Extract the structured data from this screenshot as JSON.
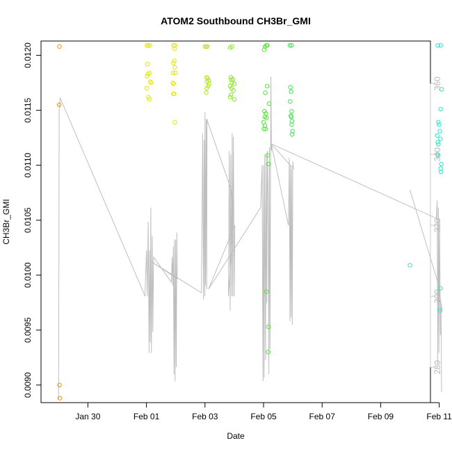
{
  "chart_data": {
    "type": "scatter",
    "title": "ATOM2 Southbound CH3Br_GMI",
    "xlabel": "Date",
    "ylabel": "CH3Br_GMI",
    "x_units": "days since Jan 30 00:00",
    "xlim": [
      -1.6,
      11.7
    ],
    "ylim": [
      0.00884,
      0.01213
    ],
    "y2lim": [
      270,
      372
    ],
    "x_ticks": [
      {
        "value": 0,
        "label": "Jan 30"
      },
      {
        "value": 2,
        "label": "Feb 01"
      },
      {
        "value": 4,
        "label": "Feb 03"
      },
      {
        "value": 6,
        "label": "Feb 05"
      },
      {
        "value": 8,
        "label": "Feb 07"
      },
      {
        "value": 10,
        "label": "Feb 09"
      },
      {
        "value": 12,
        "label": "Feb 11"
      }
    ],
    "y_ticks": [
      {
        "value": 0.009,
        "label": "0.0090"
      },
      {
        "value": 0.0095,
        "label": "0.0095"
      },
      {
        "value": 0.01,
        "label": "0.0100"
      },
      {
        "value": 0.0105,
        "label": "0.0105"
      },
      {
        "value": 0.011,
        "label": "0.0110"
      },
      {
        "value": 0.0115,
        "label": "0.0115"
      },
      {
        "value": 0.012,
        "label": "0.0120"
      }
    ],
    "y2_ticks": [
      {
        "value": 280,
        "label": "280"
      },
      {
        "value": 300,
        "label": "300"
      },
      {
        "value": 320,
        "label": "320"
      },
      {
        "value": 340,
        "label": "340"
      },
      {
        "value": 360,
        "label": "360"
      }
    ],
    "points": [
      {
        "x": -0.97,
        "y": 0.01208,
        "color": "#ff8c00"
      },
      {
        "x": -0.98,
        "y": 0.01155,
        "color": "#ff8c00"
      },
      {
        "x": -0.97,
        "y": 0.009,
        "color": "#ff8c00"
      },
      {
        "x": -0.96,
        "y": 0.00888,
        "color": "#ff8c00"
      },
      {
        "x": 2.02,
        "y": 0.01209,
        "color": "#e6e600"
      },
      {
        "x": 2.06,
        "y": 0.01209,
        "color": "#e6e600"
      },
      {
        "x": 2.12,
        "y": 0.01209,
        "color": "#e6e600"
      },
      {
        "x": 2.03,
        "y": 0.01192,
        "color": "#e6e600"
      },
      {
        "x": 2.05,
        "y": 0.01183,
        "color": "#e6e600"
      },
      {
        "x": 2.11,
        "y": 0.01184,
        "color": "#e6e600"
      },
      {
        "x": 2.02,
        "y": 0.01181,
        "color": "#e6e600"
      },
      {
        "x": 2.13,
        "y": 0.01176,
        "color": "#e6e600"
      },
      {
        "x": 2.16,
        "y": 0.01175,
        "color": "#e6e600"
      },
      {
        "x": 2.01,
        "y": 0.0117,
        "color": "#e6e600"
      },
      {
        "x": 2.07,
        "y": 0.01162,
        "color": "#e6e600"
      },
      {
        "x": 2.1,
        "y": 0.0116,
        "color": "#e6e600"
      },
      {
        "x": 2.93,
        "y": 0.01209,
        "color": "#e6e600"
      },
      {
        "x": 2.98,
        "y": 0.01209,
        "color": "#e6e600"
      },
      {
        "x": 2.96,
        "y": 0.01206,
        "color": "#e6e600"
      },
      {
        "x": 2.92,
        "y": 0.01193,
        "color": "#e6e600"
      },
      {
        "x": 2.95,
        "y": 0.01195,
        "color": "#e6e600"
      },
      {
        "x": 2.97,
        "y": 0.01189,
        "color": "#e6e600"
      },
      {
        "x": 2.91,
        "y": 0.01184,
        "color": "#e6e600"
      },
      {
        "x": 2.99,
        "y": 0.01184,
        "color": "#e6e600"
      },
      {
        "x": 2.9,
        "y": 0.01175,
        "color": "#e6e600"
      },
      {
        "x": 2.93,
        "y": 0.01174,
        "color": "#e6e600"
      },
      {
        "x": 2.92,
        "y": 0.01165,
        "color": "#e6e600"
      },
      {
        "x": 2.95,
        "y": 0.01165,
        "color": "#e6e600"
      },
      {
        "x": 2.97,
        "y": 0.01139,
        "color": "#e6e600"
      },
      {
        "x": 4.0,
        "y": 0.01208,
        "color": "#b4e61e"
      },
      {
        "x": 4.04,
        "y": 0.01208,
        "color": "#b4e61e"
      },
      {
        "x": 4.08,
        "y": 0.01208,
        "color": "#b4e61e"
      },
      {
        "x": 4.05,
        "y": 0.0118,
        "color": "#b4e61e"
      },
      {
        "x": 4.09,
        "y": 0.01179,
        "color": "#b4e61e"
      },
      {
        "x": 4.13,
        "y": 0.01177,
        "color": "#b4e61e"
      },
      {
        "x": 4.07,
        "y": 0.01176,
        "color": "#b4e61e"
      },
      {
        "x": 4.14,
        "y": 0.01174,
        "color": "#b4e61e"
      },
      {
        "x": 4.11,
        "y": 0.01172,
        "color": "#b4e61e"
      },
      {
        "x": 4.06,
        "y": 0.0117,
        "color": "#b4e61e"
      },
      {
        "x": 4.04,
        "y": 0.01166,
        "color": "#b4e61e"
      },
      {
        "x": 4.86,
        "y": 0.01207,
        "color": "#8ce628"
      },
      {
        "x": 4.92,
        "y": 0.01208,
        "color": "#8ce628"
      },
      {
        "x": 4.88,
        "y": 0.0118,
        "color": "#8ce628"
      },
      {
        "x": 4.9,
        "y": 0.01178,
        "color": "#8ce628"
      },
      {
        "x": 4.96,
        "y": 0.01178,
        "color": "#8ce628"
      },
      {
        "x": 4.92,
        "y": 0.01175,
        "color": "#8ce628"
      },
      {
        "x": 5.0,
        "y": 0.01174,
        "color": "#8ce628"
      },
      {
        "x": 4.86,
        "y": 0.01172,
        "color": "#8ce628"
      },
      {
        "x": 4.91,
        "y": 0.0117,
        "color": "#8ce628"
      },
      {
        "x": 4.97,
        "y": 0.01168,
        "color": "#8ce628"
      },
      {
        "x": 4.89,
        "y": 0.01164,
        "color": "#8ce628"
      },
      {
        "x": 4.86,
        "y": 0.01162,
        "color": "#8ce628"
      },
      {
        "x": 5.0,
        "y": 0.0116,
        "color": "#8ce628"
      },
      {
        "x": 6.02,
        "y": 0.01205,
        "color": "#50e632"
      },
      {
        "x": 6.05,
        "y": 0.01208,
        "color": "#50e632"
      },
      {
        "x": 6.12,
        "y": 0.01209,
        "color": "#50e632"
      },
      {
        "x": 6.1,
        "y": 0.01209,
        "color": "#50e632"
      },
      {
        "x": 6.12,
        "y": 0.01172,
        "color": "#50e632"
      },
      {
        "x": 6.06,
        "y": 0.01166,
        "color": "#50e632"
      },
      {
        "x": 6.19,
        "y": 0.01156,
        "color": "#50e632"
      },
      {
        "x": 6.03,
        "y": 0.01149,
        "color": "#50e632"
      },
      {
        "x": 6.08,
        "y": 0.01147,
        "color": "#50e632"
      },
      {
        "x": 6.04,
        "y": 0.01144,
        "color": "#50e632"
      },
      {
        "x": 6.1,
        "y": 0.01143,
        "color": "#50e632"
      },
      {
        "x": 6.0,
        "y": 0.01139,
        "color": "#50e632"
      },
      {
        "x": 6.05,
        "y": 0.01136,
        "color": "#50e632"
      },
      {
        "x": 6.01,
        "y": 0.01133,
        "color": "#50e632"
      },
      {
        "x": 6.07,
        "y": 0.01133,
        "color": "#50e632"
      },
      {
        "x": 6.14,
        "y": 0.01109,
        "color": "#50e632"
      },
      {
        "x": 6.17,
        "y": 0.01101,
        "color": "#50e632"
      },
      {
        "x": 6.1,
        "y": 0.00985,
        "color": "#50e632"
      },
      {
        "x": 6.17,
        "y": 0.00953,
        "color": "#50e632"
      },
      {
        "x": 6.16,
        "y": 0.0093,
        "color": "#50e632"
      },
      {
        "x": 6.9,
        "y": 0.01209,
        "color": "#3ce650"
      },
      {
        "x": 6.96,
        "y": 0.01209,
        "color": "#3ce650"
      },
      {
        "x": 6.92,
        "y": 0.01171,
        "color": "#3ce650"
      },
      {
        "x": 6.94,
        "y": 0.01167,
        "color": "#3ce650"
      },
      {
        "x": 6.91,
        "y": 0.01158,
        "color": "#3ce650"
      },
      {
        "x": 6.96,
        "y": 0.01149,
        "color": "#3ce650"
      },
      {
        "x": 6.93,
        "y": 0.01145,
        "color": "#3ce650"
      },
      {
        "x": 6.95,
        "y": 0.01144,
        "color": "#3ce650"
      },
      {
        "x": 6.97,
        "y": 0.0114,
        "color": "#3ce650"
      },
      {
        "x": 6.96,
        "y": 0.01137,
        "color": "#3ce650"
      },
      {
        "x": 6.99,
        "y": 0.01131,
        "color": "#3ce650"
      },
      {
        "x": 6.97,
        "y": 0.01128,
        "color": "#3ce650"
      },
      {
        "x": 11.0,
        "y": 0.01009,
        "color": "#32e6b4"
      },
      {
        "x": 11.95,
        "y": 0.01209,
        "color": "#28e6c8"
      },
      {
        "x": 12.05,
        "y": 0.01209,
        "color": "#28e6c8"
      },
      {
        "x": 12.08,
        "y": 0.01169,
        "color": "#28e6c8"
      },
      {
        "x": 12.05,
        "y": 0.01151,
        "color": "#28e6c8"
      },
      {
        "x": 11.97,
        "y": 0.01139,
        "color": "#28e6c8"
      },
      {
        "x": 12.0,
        "y": 0.01137,
        "color": "#28e6c8"
      },
      {
        "x": 12.02,
        "y": 0.01131,
        "color": "#28e6c8"
      },
      {
        "x": 11.93,
        "y": 0.01127,
        "color": "#28e6c8"
      },
      {
        "x": 12.04,
        "y": 0.01124,
        "color": "#28e6c8"
      },
      {
        "x": 11.95,
        "y": 0.01121,
        "color": "#28e6c8"
      },
      {
        "x": 11.97,
        "y": 0.01119,
        "color": "#28e6c8"
      },
      {
        "x": 11.94,
        "y": 0.0111,
        "color": "#28e6c8"
      },
      {
        "x": 11.96,
        "y": 0.01109,
        "color": "#28e6c8"
      },
      {
        "x": 12.07,
        "y": 0.01101,
        "color": "#28e6c8"
      },
      {
        "x": 12.05,
        "y": 0.01097,
        "color": "#28e6c8"
      },
      {
        "x": 12.06,
        "y": 0.01094,
        "color": "#28e6c8"
      },
      {
        "x": 12.04,
        "y": 0.00988,
        "color": "#28e6c8"
      },
      {
        "x": 12.03,
        "y": 0.00968,
        "color": "#28e6c8"
      }
    ],
    "line_color": "#bebebe",
    "line_y2": [
      [
        -1.0,
        271
      ],
      [
        -0.98,
        352
      ],
      [
        -0.95,
        356
      ],
      [
        1.8,
        303
      ],
      [
        1.95,
        300
      ],
      [
        2.0,
        313
      ],
      [
        2.03,
        300
      ],
      [
        2.06,
        321
      ],
      [
        2.09,
        284
      ],
      [
        2.11,
        313
      ],
      [
        2.13,
        287
      ],
      [
        2.15,
        325
      ],
      [
        2.17,
        284
      ],
      [
        2.2,
        317
      ],
      [
        2.22,
        290
      ],
      [
        2.24,
        308
      ],
      [
        2.25,
        311
      ],
      [
        2.85,
        304
      ],
      [
        2.88,
        311
      ],
      [
        2.9,
        303
      ],
      [
        2.92,
        314
      ],
      [
        2.94,
        278
      ],
      [
        2.96,
        316
      ],
      [
        2.98,
        276
      ],
      [
        3.0,
        316
      ],
      [
        3.02,
        280
      ],
      [
        3.04,
        318
      ],
      [
        3.05,
        305
      ],
      [
        2.12,
        310
      ],
      [
        3.88,
        301
      ],
      [
        3.92,
        346
      ],
      [
        3.95,
        299
      ],
      [
        3.97,
        344
      ],
      [
        3.99,
        300
      ],
      [
        4.0,
        352
      ],
      [
        4.02,
        303
      ],
      [
        4.04,
        350
      ],
      [
        4.06,
        302
      ],
      [
        4.07,
        350
      ],
      [
        4.1,
        349
      ],
      [
        4.9,
        330
      ],
      [
        4.96,
        320
      ],
      [
        4.8,
        300
      ],
      [
        4.83,
        341
      ],
      [
        4.86,
        296
      ],
      [
        4.88,
        340
      ],
      [
        4.91,
        300
      ],
      [
        4.93,
        346
      ],
      [
        4.95,
        300
      ],
      [
        4.97,
        345
      ],
      [
        5.0,
        300
      ],
      [
        5.02,
        320
      ],
      [
        4.12,
        302
      ],
      [
        5.9,
        325
      ],
      [
        5.95,
        337
      ],
      [
        5.98,
        276
      ],
      [
        6.0,
        337
      ],
      [
        6.02,
        277
      ],
      [
        6.04,
        340
      ],
      [
        6.07,
        282
      ],
      [
        6.09,
        340
      ],
      [
        6.11,
        298
      ],
      [
        6.13,
        341
      ],
      [
        6.16,
        326
      ],
      [
        6.18,
        278
      ],
      [
        6.2,
        342
      ],
      [
        6.22,
        285
      ],
      [
        6.25,
        362
      ],
      [
        6.27,
        341
      ],
      [
        6.24,
        344
      ],
      [
        6.85,
        320
      ],
      [
        6.88,
        339
      ],
      [
        6.9,
        293
      ],
      [
        6.92,
        337
      ],
      [
        6.94,
        294
      ],
      [
        6.96,
        336
      ],
      [
        6.98,
        292
      ],
      [
        7.0,
        338
      ],
      [
        7.02,
        336
      ],
      [
        6.26,
        343
      ],
      [
        11.9,
        322
      ],
      [
        11.93,
        327
      ],
      [
        11.95,
        281
      ],
      [
        11.97,
        325
      ],
      [
        11.99,
        284
      ],
      [
        12.01,
        322
      ],
      [
        12.04,
        289
      ],
      [
        12.06,
        298
      ],
      [
        12.08,
        273
      ]
    ],
    "extra_line_y2": [
      [
        11.0,
        330
      ],
      [
        11.95,
        304
      ],
      [
        12.1,
        296
      ]
    ]
  }
}
